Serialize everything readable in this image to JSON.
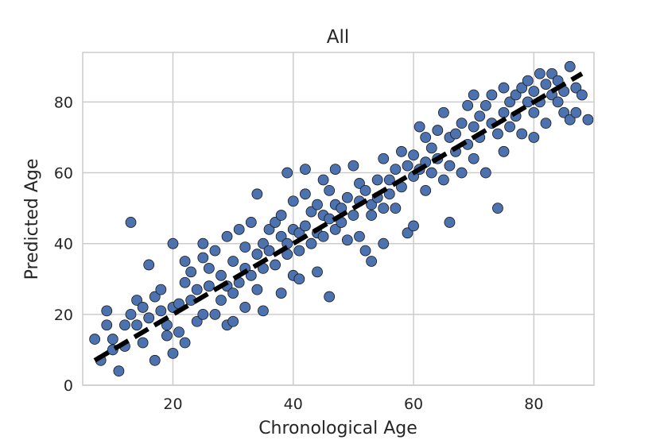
{
  "chart_data": {
    "type": "scatter",
    "title": "All",
    "xlabel": "Chronological Age",
    "ylabel": "Predicted Age",
    "xlim": [
      5,
      90
    ],
    "ylim": [
      0,
      94
    ],
    "xticks": [
      20,
      40,
      60,
      80
    ],
    "yticks": [
      0,
      20,
      40,
      60,
      80
    ],
    "xtick_labels": [
      "20",
      "40",
      "60",
      "80"
    ],
    "ytick_labels": [
      "0",
      "20",
      "40",
      "60",
      "80"
    ],
    "grid": true,
    "legend": "none",
    "point_color": "#4c72b0",
    "point_edge_color": "#1a1a1a",
    "fit_line": {
      "style": "dashed",
      "color": "#000000",
      "points": [
        [
          7,
          7
        ],
        [
          88,
          88
        ]
      ]
    },
    "series": [
      {
        "points": [
          [
            7,
            13
          ],
          [
            8,
            7
          ],
          [
            9,
            21
          ],
          [
            9,
            17
          ],
          [
            10,
            10
          ],
          [
            10,
            13
          ],
          [
            11,
            4
          ],
          [
            12,
            17
          ],
          [
            12,
            11
          ],
          [
            13,
            20
          ],
          [
            13,
            46
          ],
          [
            14,
            24
          ],
          [
            14,
            17
          ],
          [
            15,
            22
          ],
          [
            15,
            12
          ],
          [
            16,
            19
          ],
          [
            16,
            34
          ],
          [
            17,
            25
          ],
          [
            17,
            7
          ],
          [
            18,
            27
          ],
          [
            18,
            21
          ],
          [
            19,
            14
          ],
          [
            19,
            17
          ],
          [
            20,
            22
          ],
          [
            20,
            9
          ],
          [
            20,
            40
          ],
          [
            21,
            15
          ],
          [
            21,
            23
          ],
          [
            22,
            29
          ],
          [
            22,
            12
          ],
          [
            22,
            35
          ],
          [
            23,
            24
          ],
          [
            23,
            32
          ],
          [
            24,
            18
          ],
          [
            24,
            27
          ],
          [
            25,
            40
          ],
          [
            25,
            20
          ],
          [
            25,
            36
          ],
          [
            26,
            28
          ],
          [
            26,
            33
          ],
          [
            27,
            20
          ],
          [
            27,
            38
          ],
          [
            28,
            31
          ],
          [
            28,
            24
          ],
          [
            29,
            17
          ],
          [
            29,
            42
          ],
          [
            29,
            28
          ],
          [
            30,
            26
          ],
          [
            30,
            35
          ],
          [
            30,
            18
          ],
          [
            31,
            44
          ],
          [
            31,
            29
          ],
          [
            32,
            33
          ],
          [
            32,
            39
          ],
          [
            32,
            22
          ],
          [
            33,
            31
          ],
          [
            33,
            46
          ],
          [
            34,
            37
          ],
          [
            34,
            27
          ],
          [
            34,
            54
          ],
          [
            35,
            40
          ],
          [
            35,
            33
          ],
          [
            35,
            21
          ],
          [
            36,
            44
          ],
          [
            36,
            38
          ],
          [
            37,
            46
          ],
          [
            37,
            34
          ],
          [
            38,
            42
          ],
          [
            38,
            48
          ],
          [
            38,
            26
          ],
          [
            39,
            40
          ],
          [
            39,
            37
          ],
          [
            39,
            60
          ],
          [
            40,
            44
          ],
          [
            40,
            31
          ],
          [
            40,
            52
          ],
          [
            41,
            43
          ],
          [
            41,
            38
          ],
          [
            41,
            30
          ],
          [
            42,
            45
          ],
          [
            42,
            61
          ],
          [
            42,
            54
          ],
          [
            43,
            40
          ],
          [
            43,
            49
          ],
          [
            44,
            51
          ],
          [
            44,
            43
          ],
          [
            44,
            32
          ],
          [
            45,
            48
          ],
          [
            45,
            58
          ],
          [
            45,
            42
          ],
          [
            46,
            47
          ],
          [
            46,
            55
          ],
          [
            46,
            25
          ],
          [
            47,
            51
          ],
          [
            47,
            44
          ],
          [
            47,
            61
          ],
          [
            48,
            50
          ],
          [
            48,
            46
          ],
          [
            49,
            53
          ],
          [
            49,
            41
          ],
          [
            50,
            62
          ],
          [
            50,
            48
          ],
          [
            51,
            52
          ],
          [
            51,
            57
          ],
          [
            51,
            42
          ],
          [
            52,
            55
          ],
          [
            52,
            38
          ],
          [
            53,
            51
          ],
          [
            53,
            48
          ],
          [
            53,
            35
          ],
          [
            54,
            58
          ],
          [
            54,
            53
          ],
          [
            55,
            64
          ],
          [
            55,
            50
          ],
          [
            55,
            40
          ],
          [
            56,
            58
          ],
          [
            56,
            54
          ],
          [
            57,
            61
          ],
          [
            57,
            50
          ],
          [
            58,
            66
          ],
          [
            58,
            56
          ],
          [
            59,
            43
          ],
          [
            59,
            62
          ],
          [
            60,
            59
          ],
          [
            60,
            65
          ],
          [
            60,
            45
          ],
          [
            61,
            73
          ],
          [
            61,
            61
          ],
          [
            62,
            63
          ],
          [
            62,
            55
          ],
          [
            62,
            70
          ],
          [
            63,
            67
          ],
          [
            63,
            60
          ],
          [
            64,
            72
          ],
          [
            64,
            64
          ],
          [
            65,
            77
          ],
          [
            65,
            58
          ],
          [
            66,
            46
          ],
          [
            66,
            70
          ],
          [
            66,
            62
          ],
          [
            67,
            71
          ],
          [
            67,
            66
          ],
          [
            68,
            74
          ],
          [
            68,
            60
          ],
          [
            69,
            79
          ],
          [
            69,
            68
          ],
          [
            70,
            73
          ],
          [
            70,
            82
          ],
          [
            70,
            64
          ],
          [
            71,
            76
          ],
          [
            71,
            70
          ],
          [
            72,
            79
          ],
          [
            72,
            60
          ],
          [
            73,
            74
          ],
          [
            73,
            82
          ],
          [
            74,
            50
          ],
          [
            74,
            71
          ],
          [
            75,
            77
          ],
          [
            75,
            84
          ],
          [
            75,
            66
          ],
          [
            76,
            80
          ],
          [
            76,
            73
          ],
          [
            77,
            82
          ],
          [
            77,
            76
          ],
          [
            78,
            84
          ],
          [
            78,
            71
          ],
          [
            79,
            80
          ],
          [
            79,
            86
          ],
          [
            80,
            77
          ],
          [
            80,
            83
          ],
          [
            80,
            70
          ],
          [
            81,
            88
          ],
          [
            81,
            80
          ],
          [
            82,
            85
          ],
          [
            82,
            74
          ],
          [
            83,
            88
          ],
          [
            83,
            82
          ],
          [
            84,
            80
          ],
          [
            84,
            86
          ],
          [
            85,
            77
          ],
          [
            85,
            83
          ],
          [
            86,
            90
          ],
          [
            86,
            75
          ],
          [
            87,
            84
          ],
          [
            87,
            77
          ],
          [
            88,
            82
          ],
          [
            89,
            75
          ]
        ]
      }
    ]
  }
}
